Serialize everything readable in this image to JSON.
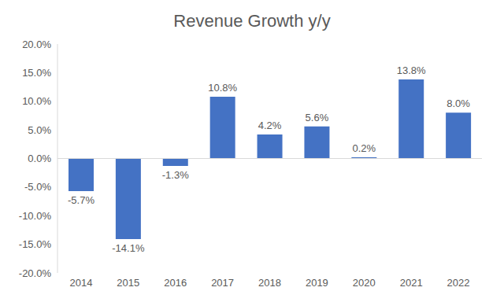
{
  "chart_data": {
    "type": "bar",
    "title": "Revenue Growth y/y",
    "categories": [
      "2014",
      "2015",
      "2016",
      "2017",
      "2018",
      "2019",
      "2020",
      "2021",
      "2022"
    ],
    "values": [
      -5.7,
      -14.1,
      -1.3,
      10.8,
      4.2,
      5.6,
      0.2,
      13.8,
      8.0
    ],
    "value_labels": [
      "-5.7%",
      "-14.1%",
      "-1.3%",
      "10.8%",
      "4.2%",
      "5.6%",
      "0.2%",
      "13.8%",
      "8.0%"
    ],
    "color": "#4472c4",
    "ylim": [
      -20,
      20
    ],
    "yticks": [
      {
        "value": -20,
        "label": "-20.0%"
      },
      {
        "value": -15,
        "label": "-15.0%"
      },
      {
        "value": -10,
        "label": "-10.0%"
      },
      {
        "value": -5,
        "label": "-5.0%"
      },
      {
        "value": 0,
        "label": "0.0%"
      },
      {
        "value": 5,
        "label": "5.0%"
      },
      {
        "value": 10,
        "label": "10.0%"
      },
      {
        "value": 15,
        "label": "15.0%"
      },
      {
        "value": 20,
        "label": "20.0%"
      }
    ],
    "grid": false,
    "data_labels": true
  }
}
